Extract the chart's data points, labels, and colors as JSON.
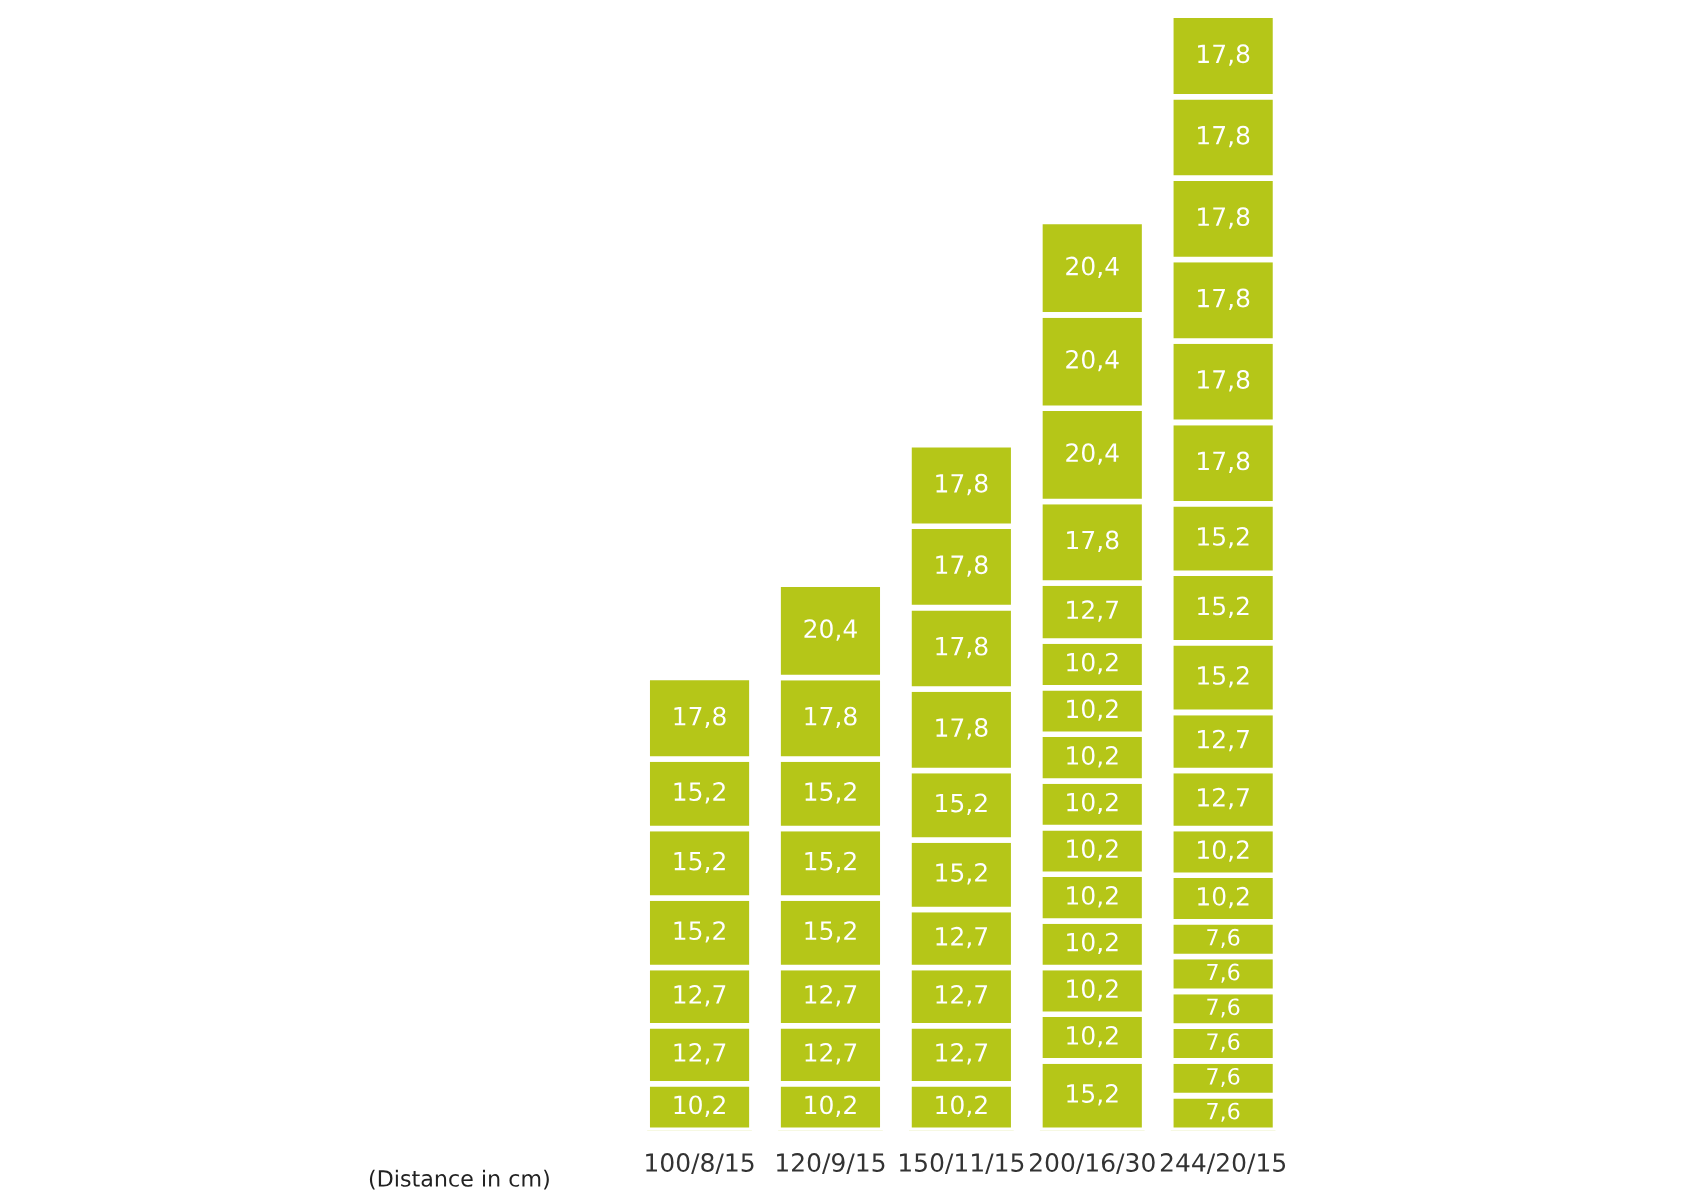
{
  "chart_data": {
    "type": "bar",
    "stacked": true,
    "categories": [
      "100/8/15",
      "120/9/15",
      "150/11/15",
      "200/16/30",
      "244/20/15"
    ],
    "ylim": [
      0,
      244
    ],
    "tick_labels": "x",
    "grid": false,
    "annotations": [
      "(Distance in cm)"
    ],
    "series": [
      {
        "color": "#b5c618",
        "values": [
          10.2,
          10.2,
          10.2,
          15.2,
          7.6
        ],
        "value_labels": [
          "10,2",
          "10,2",
          "10,2",
          "15,2",
          "7,6"
        ]
      },
      {
        "color": "#b5c618",
        "values": [
          12.7,
          12.7,
          12.7,
          10.2,
          7.6
        ],
        "value_labels": [
          "12,7",
          "12,7",
          "12,7",
          "10,2",
          "7,6"
        ]
      },
      {
        "color": "#b5c618",
        "values": [
          12.7,
          12.7,
          12.7,
          10.2,
          7.6
        ],
        "value_labels": [
          "12,7",
          "12,7",
          "12,7",
          "10,2",
          "7,6"
        ]
      },
      {
        "color": "#b5c618",
        "values": [
          15.2,
          15.2,
          12.7,
          10.2,
          7.6
        ],
        "value_labels": [
          "15,2",
          "15,2",
          "12,7",
          "10,2",
          "7,6"
        ]
      },
      {
        "color": "#b5c618",
        "values": [
          15.2,
          15.2,
          15.2,
          10.2,
          7.6
        ],
        "value_labels": [
          "15,2",
          "15,2",
          "15,2",
          "10,2",
          "7,6"
        ]
      },
      {
        "color": "#b5c618",
        "values": [
          15.2,
          15.2,
          15.2,
          10.2,
          7.6
        ],
        "value_labels": [
          "15,2",
          "15,2",
          "15,2",
          "10,2",
          "7,6"
        ]
      },
      {
        "color": "#b5c618",
        "values": [
          17.8,
          17.8,
          17.8,
          10.2,
          10.2
        ],
        "value_labels": [
          "17,8",
          "17,8",
          "17,8",
          "10,2",
          "10,2"
        ]
      },
      {
        "color": "#b5c618",
        "values": [
          null,
          20.4,
          17.8,
          10.2,
          10.2
        ],
        "value_labels": [
          null,
          "20,4",
          "17,8",
          "10,2",
          "10,2"
        ]
      },
      {
        "color": "#b5c618",
        "values": [
          null,
          null,
          17.8,
          10.2,
          12.7
        ],
        "value_labels": [
          null,
          null,
          "17,8",
          "10,2",
          "12,7"
        ]
      },
      {
        "color": "#b5c618",
        "values": [
          null,
          null,
          17.8,
          10.2,
          12.7
        ],
        "value_labels": [
          null,
          null,
          "17,8",
          "10,2",
          "12,7"
        ]
      },
      {
        "color": "#b5c618",
        "values": [
          null,
          null,
          null,
          12.7,
          15.2
        ],
        "value_labels": [
          null,
          null,
          null,
          "12,7",
          "15,2"
        ]
      },
      {
        "color": "#b5c618",
        "values": [
          null,
          null,
          null,
          17.8,
          15.2
        ],
        "value_labels": [
          null,
          null,
          null,
          "17,8",
          "15,2"
        ]
      },
      {
        "color": "#b5c618",
        "values": [
          null,
          null,
          null,
          20.4,
          15.2
        ],
        "value_labels": [
          null,
          null,
          null,
          "20,4",
          "15,2"
        ]
      },
      {
        "color": "#b5c618",
        "values": [
          null,
          null,
          null,
          20.4,
          17.8
        ],
        "value_labels": [
          null,
          null,
          null,
          "20,4",
          "17,8"
        ]
      },
      {
        "color": "#b5c618",
        "values": [
          null,
          null,
          null,
          20.4,
          17.8
        ],
        "value_labels": [
          null,
          null,
          null,
          "20,4",
          "17,8"
        ]
      },
      {
        "color": "#b5c618",
        "values": [
          null,
          null,
          null,
          null,
          17.8
        ],
        "value_labels": [
          null,
          null,
          null,
          null,
          "17,8"
        ]
      },
      {
        "color": "#b5c618",
        "values": [
          null,
          null,
          null,
          null,
          17.8
        ],
        "value_labels": [
          null,
          null,
          null,
          null,
          "17,8"
        ]
      },
      {
        "color": "#b5c618",
        "values": [
          null,
          null,
          null,
          null,
          17.8
        ],
        "value_labels": [
          null,
          null,
          null,
          null,
          "17,8"
        ]
      },
      {
        "color": "#b5c618",
        "values": [
          null,
          null,
          null,
          null,
          17.8
        ],
        "value_labels": [
          null,
          null,
          null,
          null,
          "17,8"
        ]
      }
    ]
  }
}
